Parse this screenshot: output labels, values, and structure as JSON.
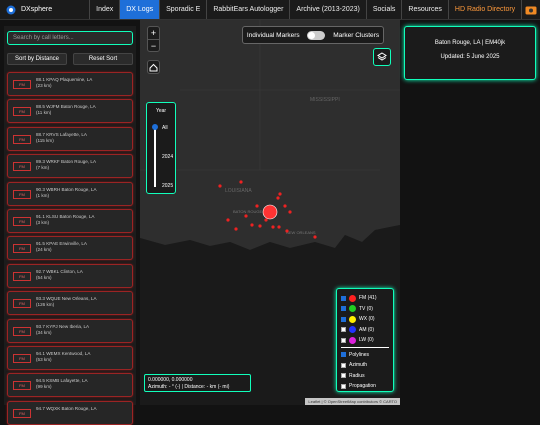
{
  "nav": {
    "logo": "DXsphere",
    "tabs": [
      "Index",
      "DX Logs",
      "Sporadic E",
      "RabbitEars Autologger",
      "Archive (2013-2023)",
      "Socials",
      "Resources",
      "HD Radio Directory"
    ]
  },
  "sidebar": {
    "search_placeholder": "Search by call letters...",
    "buttons": [
      "Sort by Distance",
      "Reset Sort"
    ],
    "stations": [
      {
        "badge": "FM",
        "name": "88.1 KPAQ Plaquemine, LA",
        "distance": "(23 km)"
      },
      {
        "badge": "FM",
        "name": "88.5 WJFM Baton Rouge, LA",
        "distance": "(11 km)"
      },
      {
        "badge": "FM",
        "name": "88.7 KRVS Lafayette, LA",
        "distance": "(115 km)"
      },
      {
        "badge": "FM",
        "name": "89.3 WRKF Baton Rouge, LA",
        "distance": "(7 km)"
      },
      {
        "badge": "FM",
        "name": "90.3 WBRH Baton Rouge, LA",
        "distance": "(1 km)"
      },
      {
        "badge": "FM",
        "name": "91.1 KLSU Baton Rouge, LA",
        "distance": "(3 km)"
      },
      {
        "badge": "FM",
        "name": "91.5 KPAE Erwinville, LA",
        "distance": "(24 km)"
      },
      {
        "badge": "FM",
        "name": "92.7 WBKL Clinton, LA",
        "distance": "(54 km)"
      },
      {
        "badge": "FM",
        "name": "93.3 WQUE New Orleans, LA",
        "distance": "(126 km)"
      },
      {
        "badge": "FM",
        "name": "93.7 KYPJ New Iberia, LA",
        "distance": "(34 km)"
      },
      {
        "badge": "FM",
        "name": "94.1 WEMX Kentwood, LA",
        "distance": "(53 km)"
      },
      {
        "badge": "FM",
        "name": "94.5 KSMB Lafayette, LA",
        "distance": "(99 km)"
      },
      {
        "badge": "FM",
        "name": "94.7 WQXK Baton Rouge, LA",
        "distance": ""
      }
    ]
  },
  "map": {
    "toggle": [
      "Individual Markers",
      "Marker Clusters"
    ],
    "year": {
      "label": "Year",
      "options": [
        "All",
        "2024",
        "2025"
      ]
    },
    "labels": [
      "MISSISSIPPI",
      "LOUISIANA",
      "BATON ROUGE",
      "NEW ORLEANS"
    ],
    "legend": {
      "types": [
        {
          "label": "FM (41)",
          "color": "#ff2020",
          "checked": true
        },
        {
          "label": "TV (0)",
          "color": "#22cc22",
          "checked": true
        },
        {
          "label": "WX (0)",
          "color": "#ffee00",
          "checked": true
        },
        {
          "label": "AM (0)",
          "color": "#2233ff",
          "checked": false
        },
        {
          "label": "LW (0)",
          "color": "#dd22dd",
          "checked": false
        }
      ],
      "options": [
        {
          "label": "Polylines",
          "checked": true
        },
        {
          "label": "Azimuth",
          "checked": false
        },
        {
          "label": "Radius",
          "checked": false
        },
        {
          "label": "Propagation",
          "checked": false
        }
      ]
    },
    "coords": "0.000000, 0.000000",
    "azimuth": "Azimuth: - ° (-) | Distance: - km (- mi)",
    "attribution": "Leaflet | © OpenStreetMap contributors © CARTO"
  },
  "panel": {
    "location": "Baton Rouge, LA | EM40jk",
    "updated": "Updated: 5 June 2025"
  }
}
